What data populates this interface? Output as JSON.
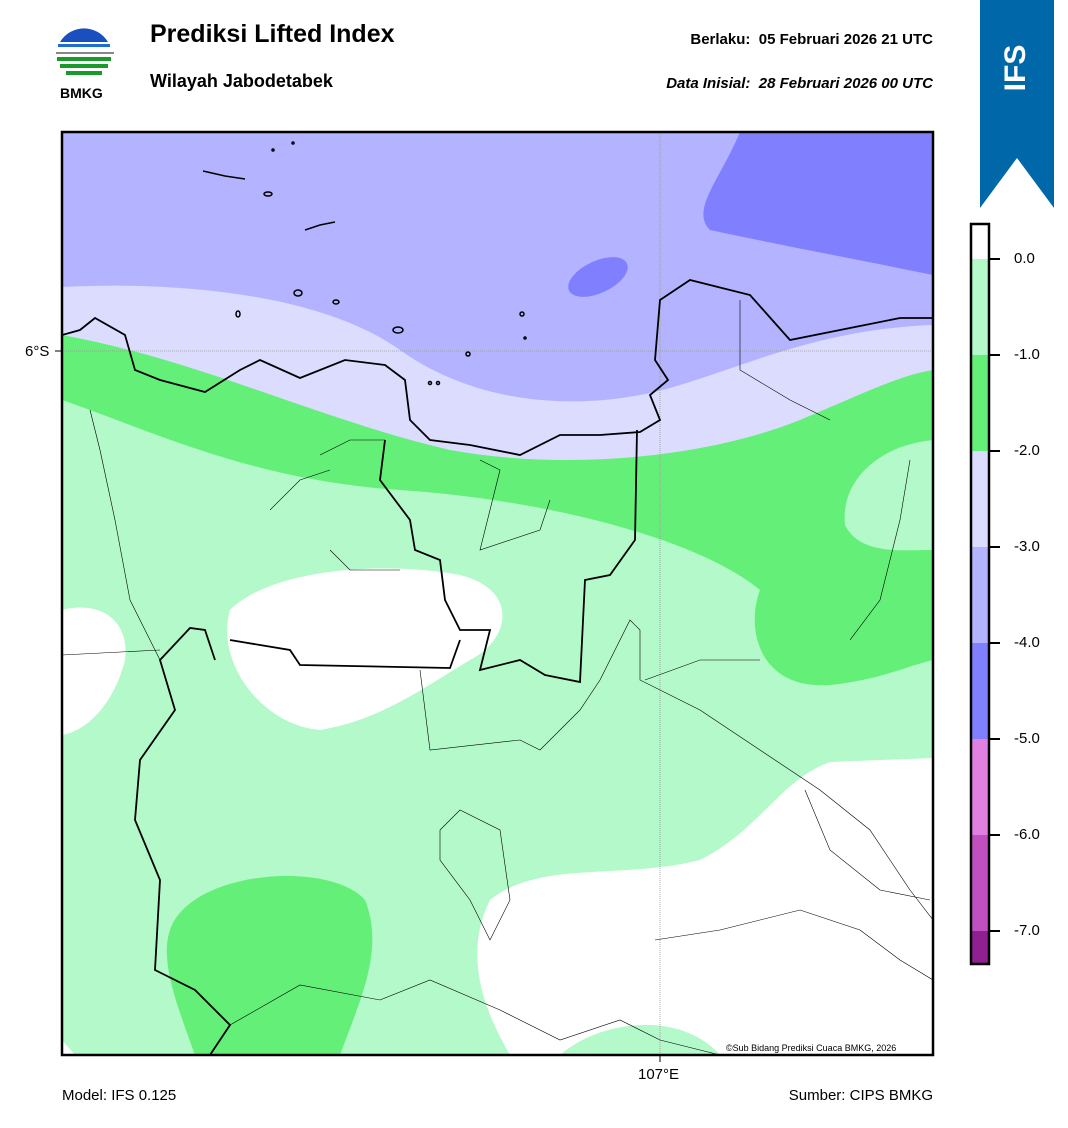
{
  "header": {
    "logo_text": "BMKG",
    "title": "Prediksi Lifted Index",
    "subtitle": "Wilayah Jabodetabek",
    "valid_label": "Berlaku:",
    "valid_value": "05 Februari 2026 21 UTC",
    "init_label": "Data Inisial:",
    "init_value": "28 Februari 2026 00 UTC"
  },
  "badge": {
    "label": "IFS",
    "color": "#0068a8"
  },
  "map": {
    "lat_label": "6°S",
    "lon_label": "107°E",
    "copyright": "©Sub Bidang Prediksi Cuaca BMKG, 2026"
  },
  "colorbar": {
    "ticks": [
      "0.0",
      "-1.0",
      "-2.0",
      "-3.0",
      "-4.0",
      "-5.0",
      "-6.0",
      "-7.0"
    ],
    "colors": [
      "#ffffff",
      "#b3f9c9",
      "#63ef78",
      "#dcdcff",
      "#b3b3ff",
      "#8080ff",
      "#e080e0",
      "#c050c0",
      "#902090"
    ]
  },
  "footer": {
    "model": "Model: IFS 0.125",
    "source": "Sumber: CIPS BMKG"
  }
}
